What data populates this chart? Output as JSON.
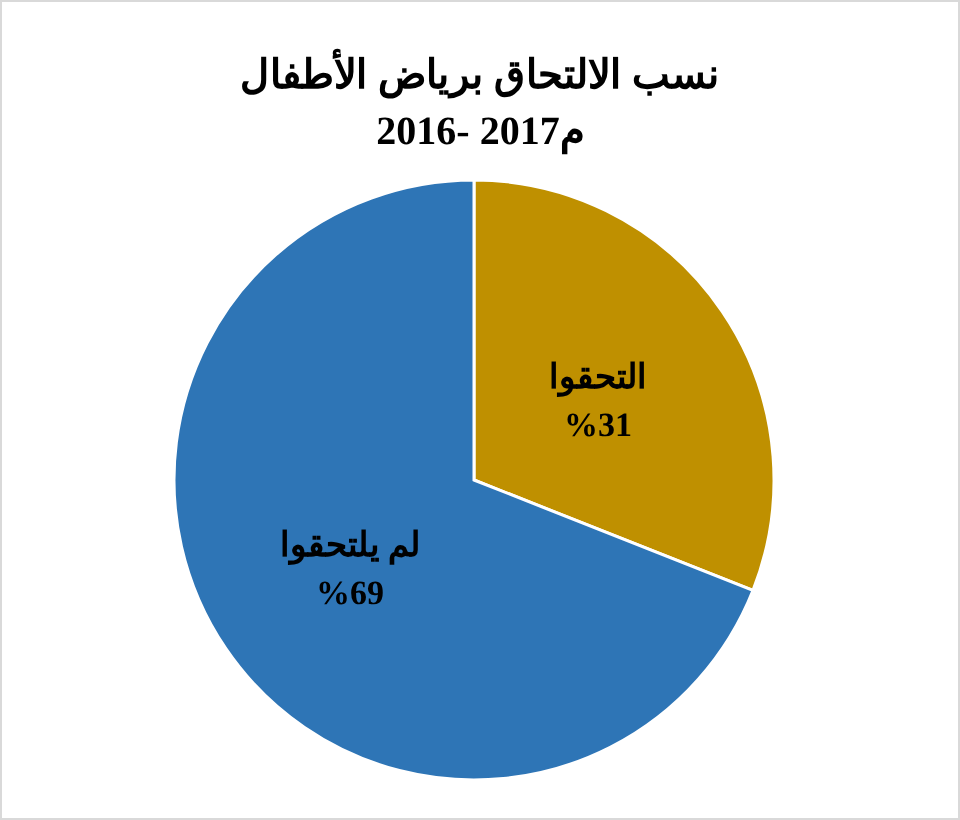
{
  "chart_data": {
    "type": "pie",
    "title": "نسب الالتحاق برياض الأطفال",
    "subtitle": "2016- 2017م",
    "categories": [
      "التحقوا",
      "لم يلتحقوا"
    ],
    "values": [
      31,
      69
    ],
    "value_labels": [
      "%31",
      "%69"
    ],
    "colors": [
      "#bf9000",
      "#2e75b6"
    ]
  }
}
